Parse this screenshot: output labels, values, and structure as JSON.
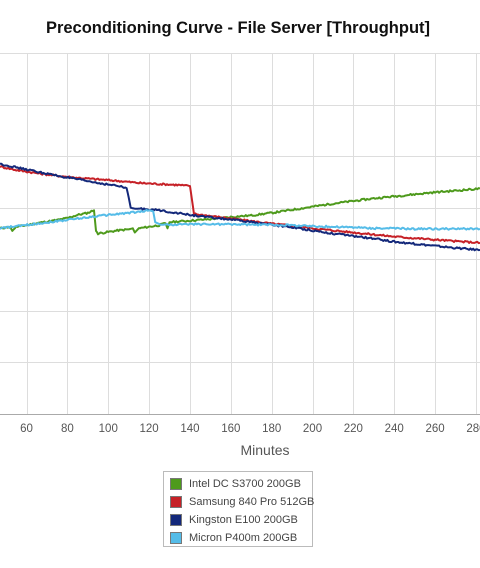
{
  "chart_data": {
    "type": "line",
    "title": "Preconditioning Curve - File Server [Throughput]",
    "xlabel": "Minutes",
    "ylabel": "",
    "xlim": [
      47,
      282
    ],
    "ylim": [
      0,
      7
    ],
    "x_ticks": [
      60,
      80,
      100,
      120,
      140,
      160,
      180,
      200,
      220,
      240,
      260,
      280
    ],
    "grid": true,
    "legend_position": "bottom",
    "series": [
      {
        "name": "Intel DC S3700 200GB",
        "color": "#4e9a1c",
        "x": [
          47,
          52,
          53,
          55,
          60,
          65,
          70,
          75,
          80,
          85,
          90,
          93,
          94,
          95,
          100,
          105,
          110,
          112,
          113,
          115,
          120,
          125,
          128,
          129,
          130,
          140,
          150,
          160,
          170,
          180,
          190,
          200,
          210,
          220,
          230,
          240,
          250,
          260,
          270,
          282
        ],
        "y": [
          3.6,
          3.63,
          3.55,
          3.63,
          3.66,
          3.7,
          3.73,
          3.76,
          3.8,
          3.86,
          3.9,
          3.95,
          3.55,
          3.5,
          3.53,
          3.56,
          3.58,
          3.6,
          3.52,
          3.6,
          3.63,
          3.66,
          3.7,
          3.6,
          3.72,
          3.75,
          3.78,
          3.82,
          3.85,
          3.9,
          3.96,
          4.02,
          4.08,
          4.13,
          4.18,
          4.22,
          4.26,
          4.3,
          4.33,
          4.37
        ]
      },
      {
        "name": "Samsung 840 Pro 512GB",
        "color": "#c62127",
        "x": [
          47,
          55,
          65,
          75,
          85,
          95,
          105,
          115,
          120,
          125,
          130,
          135,
          140,
          141,
          142,
          150,
          160,
          170,
          180,
          190,
          200,
          210,
          220,
          230,
          240,
          250,
          260,
          270,
          282
        ],
        "y": [
          4.8,
          4.73,
          4.67,
          4.62,
          4.58,
          4.55,
          4.52,
          4.48,
          4.47,
          4.46,
          4.45,
          4.44,
          4.42,
          4.15,
          3.88,
          3.84,
          3.79,
          3.74,
          3.69,
          3.65,
          3.6,
          3.56,
          3.52,
          3.48,
          3.44,
          3.41,
          3.38,
          3.35,
          3.32
        ]
      },
      {
        "name": "Kingston E100 200GB",
        "color": "#13287a",
        "x": [
          47,
          55,
          65,
          75,
          85,
          95,
          105,
          109,
          110,
          111,
          113,
          115,
          120,
          125,
          130,
          140,
          150,
          160,
          170,
          180,
          190,
          200,
          210,
          220,
          230,
          240,
          250,
          260,
          270,
          282
        ],
        "y": [
          4.85,
          4.78,
          4.7,
          4.62,
          4.55,
          4.48,
          4.42,
          4.38,
          4.2,
          4.0,
          3.98,
          3.98,
          3.97,
          3.95,
          3.92,
          3.86,
          3.81,
          3.77,
          3.72,
          3.67,
          3.62,
          3.56,
          3.5,
          3.45,
          3.4,
          3.34,
          3.3,
          3.26,
          3.22,
          3.18
        ]
      },
      {
        "name": "Micron P400m 200GB",
        "color": "#55bce8",
        "x": [
          47,
          55,
          65,
          75,
          85,
          95,
          105,
          115,
          120,
          122,
          123,
          125,
          130,
          140,
          150,
          160,
          170,
          180,
          190,
          200,
          210,
          220,
          230,
          240,
          250,
          260,
          270,
          282
        ],
        "y": [
          3.6,
          3.64,
          3.69,
          3.74,
          3.79,
          3.84,
          3.88,
          3.92,
          3.95,
          3.93,
          3.72,
          3.68,
          3.67,
          3.68,
          3.68,
          3.68,
          3.67,
          3.67,
          3.66,
          3.64,
          3.63,
          3.62,
          3.6,
          3.6,
          3.59,
          3.59,
          3.59,
          3.59
        ]
      }
    ]
  }
}
